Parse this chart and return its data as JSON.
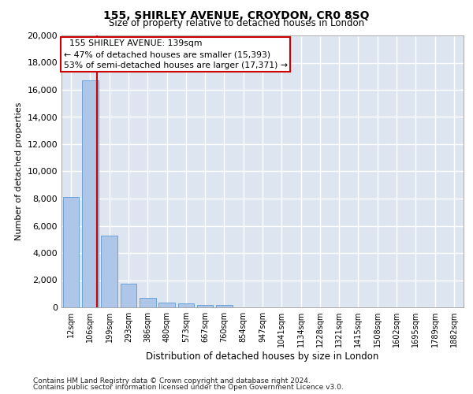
{
  "title": "155, SHIRLEY AVENUE, CROYDON, CR0 8SQ",
  "subtitle": "Size of property relative to detached houses in London",
  "xlabel": "Distribution of detached houses by size in London",
  "ylabel": "Number of detached properties",
  "categories": [
    "12sqm",
    "106sqm",
    "199sqm",
    "293sqm",
    "386sqm",
    "480sqm",
    "573sqm",
    "667sqm",
    "760sqm",
    "854sqm",
    "947sqm",
    "1041sqm",
    "1134sqm",
    "1228sqm",
    "1321sqm",
    "1415sqm",
    "1508sqm",
    "1602sqm",
    "1695sqm",
    "1789sqm",
    "1882sqm"
  ],
  "values": [
    8100,
    16700,
    5300,
    1750,
    680,
    370,
    280,
    200,
    200,
    0,
    0,
    0,
    0,
    0,
    0,
    0,
    0,
    0,
    0,
    0,
    0
  ],
  "bar_color": "#aec6e8",
  "bar_edge_color": "#5b9bd5",
  "background_color": "#dde5f0",
  "grid_color": "#ffffff",
  "annotation_box_color": "#ffffff",
  "annotation_box_edge": "#cc0000",
  "annotation_line_color": "#cc0000",
  "annotation_text": "  155 SHIRLEY AVENUE: 139sqm\n← 47% of detached houses are smaller (15,393)\n53% of semi-detached houses are larger (17,371) →",
  "ylim": [
    0,
    20000
  ],
  "yticks": [
    0,
    2000,
    4000,
    6000,
    8000,
    10000,
    12000,
    14000,
    16000,
    18000,
    20000
  ],
  "footnote1": "Contains HM Land Registry data © Crown copyright and database right 2024.",
  "footnote2": "Contains public sector information licensed under the Open Government Licence v3.0."
}
